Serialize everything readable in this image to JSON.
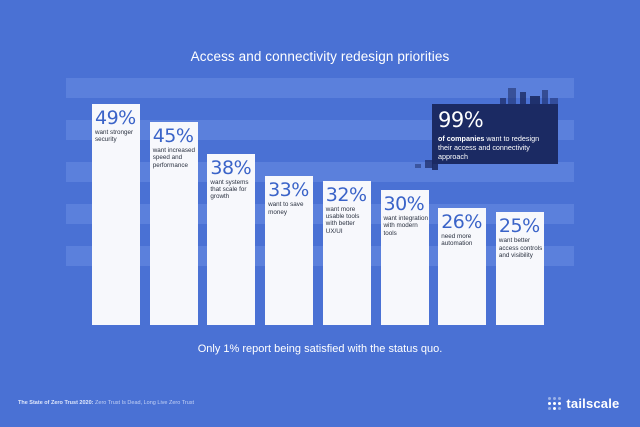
{
  "chart_data": {
    "type": "bar",
    "title": "Access and connectivity redesign priorities",
    "subtitle": "Only 1% report being satisfied with the status quo.",
    "categories": [
      "want stronger security",
      "want increased speed and performance",
      "want systems that scale for growth",
      "want to save money",
      "want more usable tools with better UX/UI",
      "want integration with modern tools",
      "need more automation",
      "want better access controls and visibility"
    ],
    "value_labels": [
      "49%",
      "45%",
      "38%",
      "33%",
      "32%",
      "30%",
      "26%",
      "25%"
    ],
    "values": [
      49,
      45,
      38,
      33,
      32,
      30,
      26,
      25
    ],
    "ylim": [
      0,
      50
    ],
    "grid": true,
    "legend": "none"
  },
  "callout": {
    "value": "99%",
    "text_bold": "of companies",
    "text_rest": " want to redesign their access and connectivity approach"
  },
  "footer": {
    "source_bold": "The State of Zero Trust 2020:",
    "source_rest": " Zero Trust Is Dead, Long Live Zero Trust"
  },
  "brand": {
    "name": "tailscale",
    "logo_icon": "tailscale-dots-icon"
  },
  "colors": {
    "background": "#4a71d4",
    "bar": "#f7f8fc",
    "value_text": "#3a63c8",
    "callout_bg": "#1b2a63"
  }
}
